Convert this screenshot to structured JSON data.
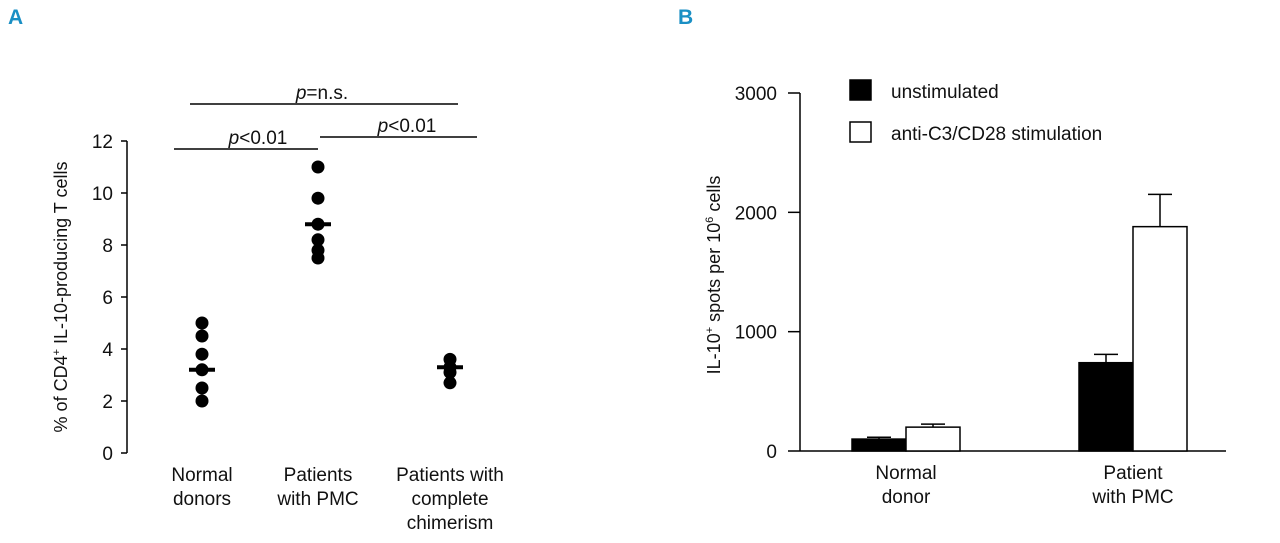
{
  "panels": {
    "a": "A",
    "b": "B"
  },
  "chart_data": [
    {
      "type": "scatter",
      "panel": "A",
      "ylabel_main": "% of CD4",
      "ylabel_sup": "+",
      "ylabel_rest": " IL-10-producing T cells",
      "ylim": [
        0,
        12
      ],
      "yticks": [
        0,
        2,
        4,
        6,
        8,
        10,
        12
      ],
      "categories": [
        [
          "Normal",
          "donors"
        ],
        [
          "Patients",
          "with PMC"
        ],
        [
          "Patients with",
          "complete",
          "chimerism"
        ]
      ],
      "points": [
        [
          5.0,
          4.5,
          3.8,
          3.2,
          2.5,
          2.0
        ],
        [
          11.0,
          9.8,
          8.8,
          8.2,
          7.8,
          7.5
        ],
        [
          3.6,
          3.3,
          3.1,
          2.7
        ]
      ],
      "means": [
        3.2,
        8.8,
        3.3
      ],
      "comparisons": [
        {
          "italic": "p",
          "rest": "=n.s."
        },
        {
          "italic": "p",
          "rest": "<0.01"
        },
        {
          "italic": "p",
          "rest": "<0.01"
        }
      ]
    },
    {
      "type": "bar",
      "panel": "B",
      "ylabel_parts": [
        "IL-10",
        "+",
        " spots per 10",
        "6",
        " cells"
      ],
      "ylim": [
        0,
        3000
      ],
      "yticks": [
        0,
        1000,
        2000,
        3000
      ],
      "categories": [
        [
          "Normal",
          "donor"
        ],
        [
          "Patient",
          "with PMC"
        ]
      ],
      "series": [
        {
          "name": "unstimulated",
          "color": "#000000",
          "values": [
            100,
            740
          ],
          "errors": [
            15,
            70
          ]
        },
        {
          "name": "anti-C3/CD28 stimulation",
          "color": "#ffffff",
          "values": [
            200,
            1880
          ],
          "errors": [
            25,
            270
          ]
        }
      ]
    }
  ]
}
